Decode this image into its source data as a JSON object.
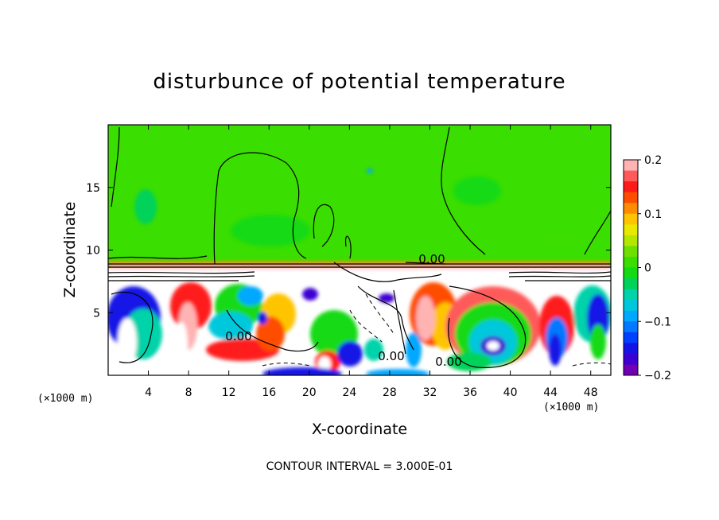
{
  "chart_data": {
    "type": "heatmap",
    "title": "disturbunce of potential temperature",
    "xlabel": "X-coordinate",
    "ylabel": "Z-coordinate",
    "x_unit": "(×1000 m)",
    "z_unit": "(×1000 m)",
    "xlim": [
      0,
      50
    ],
    "ylim": [
      0,
      20
    ],
    "x_ticks": [
      "4",
      "8",
      "12",
      "16",
      "20",
      "24",
      "28",
      "32",
      "36",
      "40",
      "44",
      "48"
    ],
    "y_ticks": [
      "5",
      "10",
      "15"
    ],
    "colorbar": {
      "range": [
        -0.2,
        0.2
      ],
      "tick_labels": [
        "0.2",
        "0.1",
        "0",
        "−0.1",
        "−0.2"
      ],
      "colors": [
        "#ffb3b3",
        "#ff5a5a",
        "#ff1a1a",
        "#ff4d00",
        "#ff8c00",
        "#ffc400",
        "#e8e800",
        "#b4e600",
        "#6ee000",
        "#3ade00",
        "#14da14",
        "#00d25a",
        "#00d2aa",
        "#00c8dc",
        "#00a8ff",
        "#0078ff",
        "#0040ff",
        "#1414e6",
        "#3c00d2",
        "#7000b4"
      ]
    },
    "contour_labels": [
      "0.00",
      "0.00",
      "0.00",
      "0.00"
    ],
    "contour_interval_text": "CONTOUR INTERVAL = 3.000E-01"
  }
}
